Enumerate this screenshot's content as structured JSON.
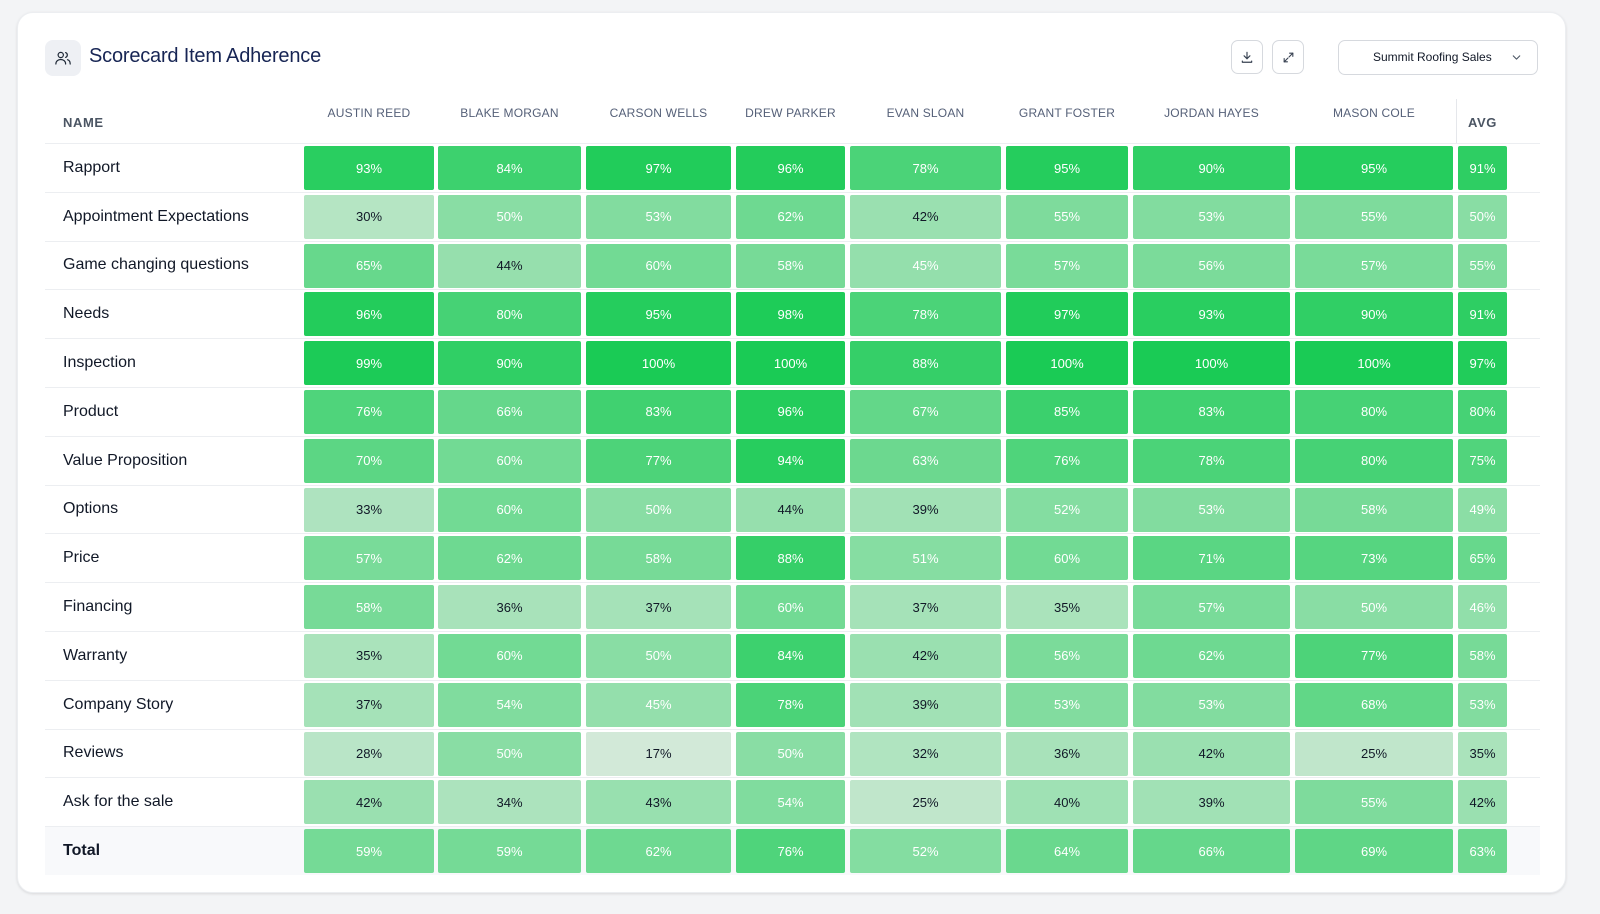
{
  "header": {
    "title": "Scorecard Item Adherence",
    "title_icon": "users-icon",
    "download_icon": "download-icon",
    "expand_icon": "expand-icon",
    "team_select": {
      "selected": "Summit Roofing Sales",
      "icon": "chevron-down-icon"
    }
  },
  "table": {
    "name_header": "NAME",
    "avg_header": "AVG",
    "reps": [
      "AUSTIN REED",
      "BLAKE MORGAN",
      "CARSON WELLS",
      "DREW PARKER",
      "EVAN SLOAN",
      "GRANT FOSTER",
      "JORDAN HAYES",
      "MASON COLE"
    ],
    "rows": [
      {
        "name": "Rapport",
        "values": [
          93,
          84,
          97,
          96,
          78,
          95,
          90,
          95
        ],
        "avg": 91
      },
      {
        "name": "Appointment Expectations",
        "values": [
          30,
          50,
          53,
          62,
          42,
          55,
          53,
          55
        ],
        "avg": 50
      },
      {
        "name": "Game changing questions",
        "values": [
          65,
          44,
          60,
          58,
          45,
          57,
          56,
          57
        ],
        "avg": 55
      },
      {
        "name": "Needs",
        "values": [
          96,
          80,
          95,
          98,
          78,
          97,
          93,
          90
        ],
        "avg": 91
      },
      {
        "name": "Inspection",
        "values": [
          99,
          90,
          100,
          100,
          88,
          100,
          100,
          100
        ],
        "avg": 97
      },
      {
        "name": "Product",
        "values": [
          76,
          66,
          83,
          96,
          67,
          85,
          83,
          80
        ],
        "avg": 80
      },
      {
        "name": "Value Proposition",
        "values": [
          70,
          60,
          77,
          94,
          63,
          76,
          78,
          80
        ],
        "avg": 75
      },
      {
        "name": "Options",
        "values": [
          33,
          60,
          50,
          44,
          39,
          52,
          53,
          58
        ],
        "avg": 49
      },
      {
        "name": "Price",
        "values": [
          57,
          62,
          58,
          88,
          51,
          60,
          71,
          73
        ],
        "avg": 65
      },
      {
        "name": "Financing",
        "values": [
          58,
          36,
          37,
          60,
          37,
          35,
          57,
          50
        ],
        "avg": 46
      },
      {
        "name": "Warranty",
        "values": [
          35,
          60,
          50,
          84,
          42,
          56,
          62,
          77
        ],
        "avg": 58
      },
      {
        "name": "Company Story",
        "values": [
          37,
          54,
          45,
          78,
          39,
          53,
          53,
          68
        ],
        "avg": 53
      },
      {
        "name": "Reviews",
        "values": [
          28,
          50,
          17,
          50,
          32,
          36,
          42,
          25
        ],
        "avg": 35
      },
      {
        "name": "Ask for the sale",
        "values": [
          42,
          34,
          43,
          54,
          25,
          40,
          39,
          55
        ],
        "avg": 42
      }
    ],
    "total": {
      "name": "Total",
      "values": [
        59,
        59,
        62,
        76,
        52,
        64,
        66,
        69
      ],
      "avg": 63
    }
  },
  "colors": {
    "heat_low": "#d6eadb",
    "heat_high": "#1acb55",
    "text_dark": "#111827",
    "text_light": "#ffffff"
  }
}
